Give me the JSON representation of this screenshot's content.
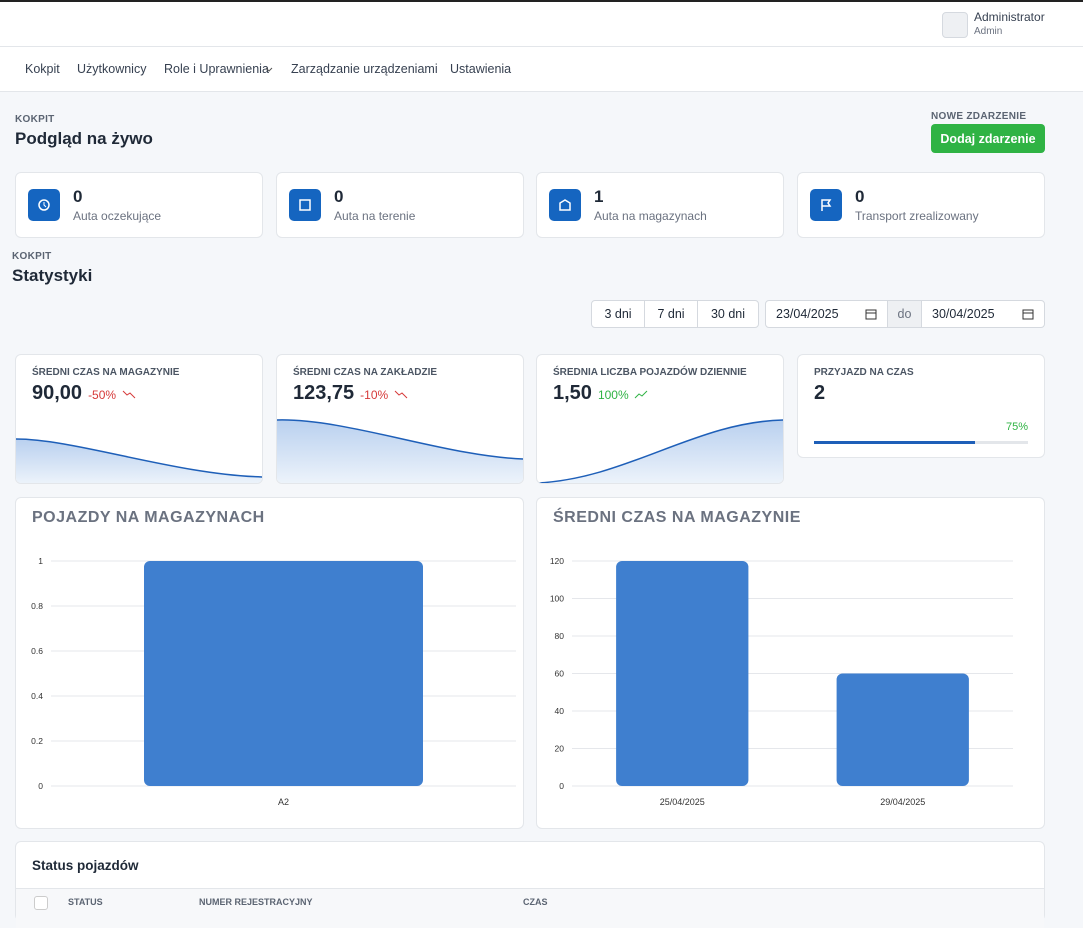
{
  "header": {
    "user": {
      "name": "Administrator",
      "role": "Admin"
    }
  },
  "nav": [
    "Kokpit",
    "Użytkownicy",
    "Role i Uprawnienia",
    "Zarządzanie urządzeniami",
    "Ustawienia"
  ],
  "live": {
    "section_label": "KOKPIT",
    "title": "Podgląd na żywo",
    "new_event": {
      "label": "NOWE ZDARZENIE",
      "button": "Dodaj zdarzenie"
    },
    "cards": [
      {
        "value": 0,
        "label": "Auta oczekujące"
      },
      {
        "value": 0,
        "label": "Auta na terenie"
      },
      {
        "value": 1,
        "label": "Auta na magazynach"
      },
      {
        "value": 0,
        "label": "Transport zrealizowany"
      }
    ]
  },
  "stats": {
    "section_label": "KOKPIT",
    "title": "Statystyki",
    "ranges": [
      "3 dni",
      "7 dni",
      "30 dni"
    ],
    "date_from": "23/04/2025",
    "date_sep": "do",
    "date_to": "30/04/2025",
    "kpis": [
      {
        "title": "ŚREDNI CZAS NA MAGAZYNIE",
        "value": "90,00",
        "delta": "-50%"
      },
      {
        "title": "ŚREDNI CZAS NA ZAKŁADZIE",
        "value": "123,75",
        "delta": "-10%"
      },
      {
        "title": "ŚREDNIA LICZBA POJAZDÓW DZIENNIE",
        "value": "1,50",
        "delta": "100%"
      }
    ],
    "ontime": {
      "title": "PRZYJAZD NA CZAS",
      "value": 2,
      "progress": 75,
      "progress_label": "75%"
    }
  },
  "charts": [
    {
      "type": "bar",
      "title": "POJAZDY NA MAGAZYNACH",
      "categories": [
        "A2"
      ],
      "values": [
        1
      ],
      "color": "#3f7fcf",
      "ylim": [
        0,
        1
      ],
      "yticks": [
        0,
        0.2,
        0.4,
        0.6,
        0.8,
        1
      ],
      "grid": true
    },
    {
      "type": "bar",
      "title": "ŚREDNI CZAS NA MAGAZYNIE",
      "categories": [
        "25/04/2025",
        "29/04/2025"
      ],
      "values": [
        120,
        60
      ],
      "color": "#3f7fcf",
      "ylim": [
        0,
        120
      ],
      "yticks": [
        0,
        20,
        40,
        60,
        80,
        100,
        120
      ],
      "grid": true
    }
  ],
  "table": {
    "title": "Status pojazdów",
    "columns": [
      "STATUS",
      "NUMER REJESTRACYJNY",
      "CZAS"
    ]
  }
}
